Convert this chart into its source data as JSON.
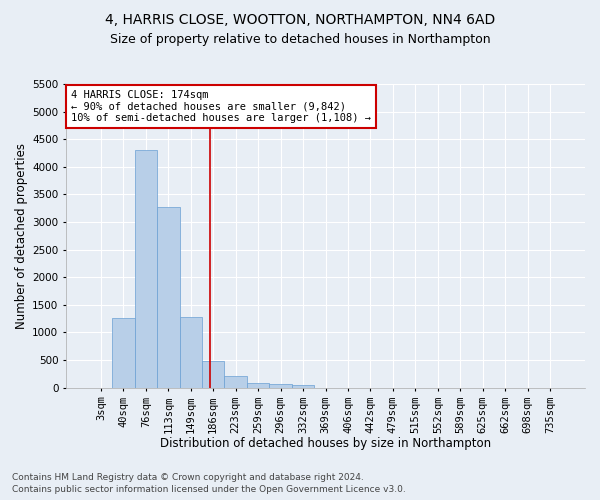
{
  "title": "4, HARRIS CLOSE, WOOTTON, NORTHAMPTON, NN4 6AD",
  "subtitle": "Size of property relative to detached houses in Northampton",
  "xlabel": "Distribution of detached houses by size in Northampton",
  "ylabel": "Number of detached properties",
  "footnote1": "Contains HM Land Registry data © Crown copyright and database right 2024.",
  "footnote2": "Contains public sector information licensed under the Open Government Licence v3.0.",
  "bar_labels": [
    "3sqm",
    "40sqm",
    "76sqm",
    "113sqm",
    "149sqm",
    "186sqm",
    "223sqm",
    "259sqm",
    "296sqm",
    "332sqm",
    "369sqm",
    "406sqm",
    "442sqm",
    "479sqm",
    "515sqm",
    "552sqm",
    "589sqm",
    "625sqm",
    "662sqm",
    "698sqm",
    "735sqm"
  ],
  "bar_values": [
    0,
    1270,
    4300,
    3280,
    1285,
    490,
    215,
    90,
    65,
    55,
    0,
    0,
    0,
    0,
    0,
    0,
    0,
    0,
    0,
    0,
    0
  ],
  "bar_color": "#b8cfe8",
  "bar_edge_color": "#6a9fd4",
  "ylim": [
    0,
    5500
  ],
  "yticks": [
    0,
    500,
    1000,
    1500,
    2000,
    2500,
    3000,
    3500,
    4000,
    4500,
    5000,
    5500
  ],
  "vline_x": 4.85,
  "vline_color": "#cc0000",
  "annotation_text": "4 HARRIS CLOSE: 174sqm\n← 90% of detached houses are smaller (9,842)\n10% of semi-detached houses are larger (1,108) →",
  "annotation_box_facecolor": "#ffffff",
  "annotation_box_edgecolor": "#cc0000",
  "bg_color": "#e8eef5",
  "plot_bg_color": "#e8eef5",
  "title_fontsize": 10,
  "subtitle_fontsize": 9,
  "xlabel_fontsize": 8.5,
  "ylabel_fontsize": 8.5,
  "tick_fontsize": 7.5,
  "annotation_fontsize": 7.5,
  "footnote_fontsize": 6.5
}
